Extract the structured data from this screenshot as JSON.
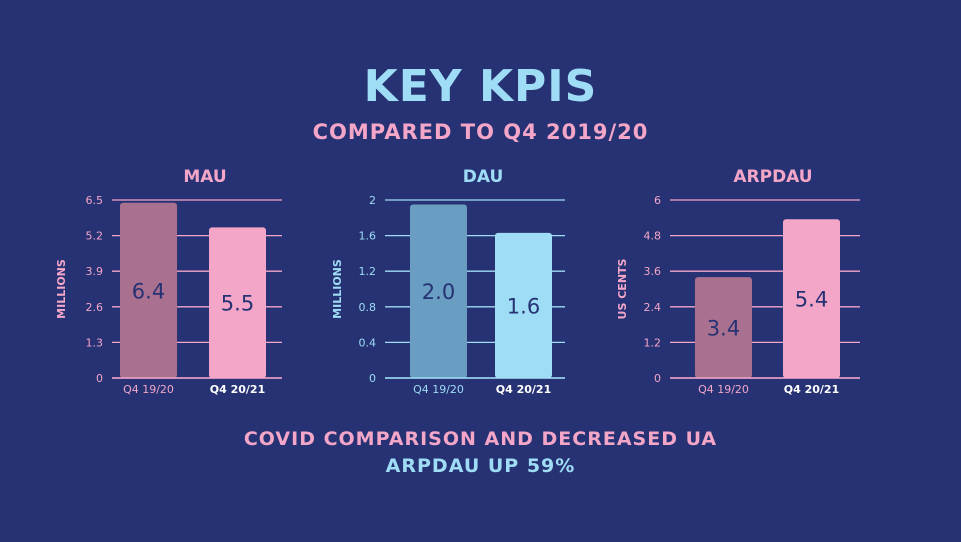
{
  "title": "KEY KPIS",
  "subtitle": "COMPARED TO Q4 2019/20",
  "footer": [
    "COVID COMPARISON AND DECREASED UA",
    "ARPDAU UP 59%"
  ],
  "colors": {
    "background": "#263273",
    "pink": "#f3a6c8",
    "mauve": "#a9718f",
    "light_blue": "#9fdcf5",
    "steel_blue": "#6a9dc2",
    "value_text": "#263273"
  },
  "chart_data": [
    {
      "type": "bar",
      "title": "MAU",
      "ylabel": "MILLIONS",
      "categories": [
        "Q4 19/20",
        "Q4 20/21"
      ],
      "values": [
        6.4,
        5.5
      ],
      "data_labels": [
        "6.4",
        "5.5"
      ],
      "ylim": [
        0,
        6.5
      ],
      "yticks": [
        "0",
        "1.3",
        "2.6",
        "3.9",
        "5.2",
        "6.5"
      ],
      "grid": true,
      "bar_colors": [
        "#a9718f",
        "#f3a6c8"
      ],
      "accent": "#f3a6c8"
    },
    {
      "type": "bar",
      "title": "DAU",
      "ylabel": "MILLIONS",
      "categories": [
        "Q4 19/20",
        "Q4 20/21"
      ],
      "values": [
        1.95,
        1.63
      ],
      "data_labels": [
        "2.0",
        "1.6"
      ],
      "ylim": [
        0,
        2
      ],
      "yticks": [
        "0",
        "0.4",
        "0.8",
        "1.2",
        "1.6",
        "2"
      ],
      "grid": true,
      "bar_colors": [
        "#6a9dc2",
        "#9fdcf5"
      ],
      "accent": "#9fdcf5"
    },
    {
      "type": "bar",
      "title": "ARPDAU",
      "ylabel": "US CENTS",
      "categories": [
        "Q4 19/20",
        "Q4 20/21"
      ],
      "values": [
        3.4,
        5.35
      ],
      "data_labels": [
        "3.4",
        "5.4"
      ],
      "ylim": [
        0,
        6
      ],
      "yticks": [
        "0",
        "1.2",
        "2.4",
        "3.6",
        "4.8",
        "6"
      ],
      "grid": true,
      "bar_colors": [
        "#a9718f",
        "#f3a6c8"
      ],
      "accent": "#f3a6c8"
    }
  ]
}
